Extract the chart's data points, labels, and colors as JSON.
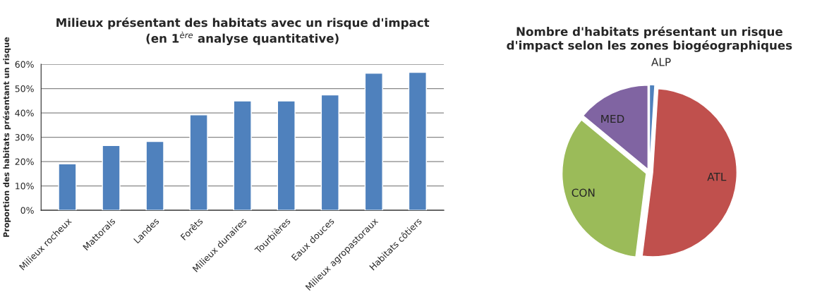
{
  "chart_data": [
    {
      "type": "bar",
      "title": "Milieux présentant des habitats avec un risque d'impact\n(en 1$^{ère}$ analyse quantitative)",
      "ylabel": "Proportion des habitats présentant un risque",
      "categories": [
        "Milieux rocheux",
        "Mattorals",
        "Landes",
        "Forêts",
        "Milieux dunaires",
        "Tourbières",
        "Eaux douces",
        "Milieux agropastoraux",
        "Habitats côtiers"
      ],
      "values": [
        19.1,
        26.6,
        28.3,
        39.2,
        44.9,
        44.9,
        47.4,
        56.3,
        56.7
      ],
      "color": "#4f81bd",
      "ylim": [
        0,
        60
      ],
      "yticks": [
        {
          "value": 0,
          "label": "0%"
        },
        {
          "value": 10,
          "label": "10%"
        },
        {
          "value": 20,
          "label": "20%"
        },
        {
          "value": 30,
          "label": "30%"
        },
        {
          "value": 40,
          "label": "40%"
        },
        {
          "value": 50,
          "label": "50%"
        },
        {
          "value": 60,
          "label": "60%"
        }
      ],
      "grid": "y"
    },
    {
      "type": "pie",
      "title": "Nombre d'habitats présentant un risque\nd'impact selon les zones biogéographiques",
      "categories": [
        "ALP",
        "ATL",
        "CON",
        "MED"
      ],
      "values": [
        1,
        51,
        34,
        14
      ],
      "colors": [
        "#4f81bd",
        "#c0504d",
        "#9bbb59",
        "#8064a2"
      ]
    }
  ]
}
